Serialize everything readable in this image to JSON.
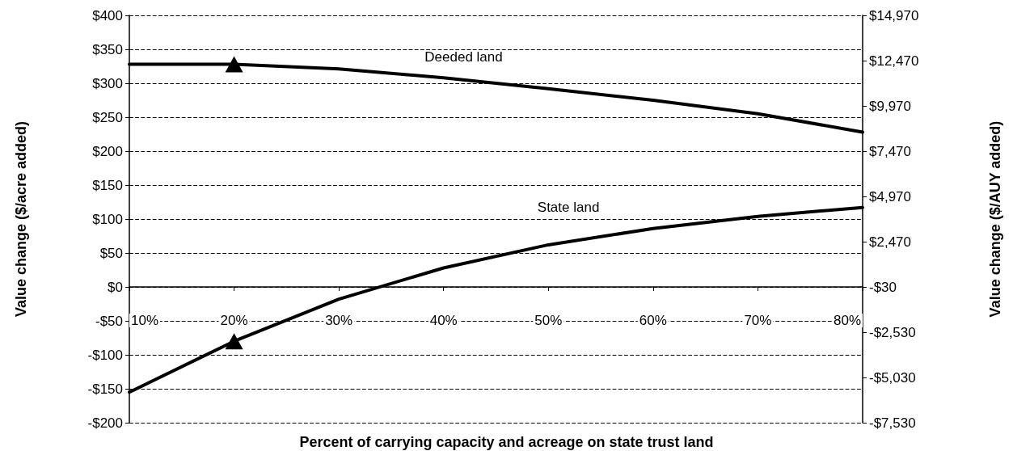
{
  "chart_data": {
    "type": "line",
    "xlabel": "Percent of carrying capacity and acreage on state trust land",
    "ylabel": "Value change ($/acre added)",
    "y2label": "Value change ($/AUY added)",
    "x": [
      10,
      20,
      30,
      40,
      50,
      60,
      70,
      80
    ],
    "series": [
      {
        "color": "#000000",
        "values": [
          328,
          328,
          321,
          308,
          292,
          275,
          255,
          228
        ]
      },
      {
        "color": "#000000",
        "values": [
          -155,
          -80,
          -18,
          28,
          62,
          86,
          104,
          117
        ]
      },
      {
        "type": "scatter",
        "color": "#000000",
        "marker": "triangle",
        "x": [
          20,
          20
        ],
        "values": [
          328,
          -80
        ]
      }
    ],
    "xlim": [
      10,
      80
    ],
    "xticks": [
      {
        "value": 10,
        "label": "10%"
      },
      {
        "value": 20,
        "label": "20%"
      },
      {
        "value": 30,
        "label": "30%"
      },
      {
        "value": 40,
        "label": "40%"
      },
      {
        "value": 50,
        "label": "50%"
      },
      {
        "value": 60,
        "label": "60%"
      },
      {
        "value": 70,
        "label": "70%"
      },
      {
        "value": 80,
        "label": "80%"
      }
    ],
    "ylim": [
      -200,
      400
    ],
    "yticks": [
      {
        "value": -200,
        "label": "-$200"
      },
      {
        "value": -150,
        "label": "-$150"
      },
      {
        "value": -100,
        "label": "-$100"
      },
      {
        "value": -50,
        "label": "-$50"
      },
      {
        "value": 0,
        "label": "$0"
      },
      {
        "value": 50,
        "label": "$50"
      },
      {
        "value": 100,
        "label": "$100"
      },
      {
        "value": 150,
        "label": "$150"
      },
      {
        "value": 200,
        "label": "$200"
      },
      {
        "value": 250,
        "label": "$250"
      },
      {
        "value": 300,
        "label": "$300"
      },
      {
        "value": 350,
        "label": "$350"
      },
      {
        "value": 400,
        "label": "$400"
      }
    ],
    "y2lim": [
      -7530,
      14970
    ],
    "y2ticks": [
      {
        "value": -7530,
        "label": "-$7,530"
      },
      {
        "value": -5030,
        "label": "-$5,030"
      },
      {
        "value": -2530,
        "label": "-$2,530"
      },
      {
        "value": -30,
        "label": "-$30"
      },
      {
        "value": 2470,
        "label": "$2,470"
      },
      {
        "value": 4970,
        "label": "$4,970"
      },
      {
        "value": 7470,
        "label": "$7,470"
      },
      {
        "value": 9970,
        "label": "$9,970"
      },
      {
        "value": 12470,
        "label": "$12,470"
      },
      {
        "value": 14970,
        "label": "$14,970"
      }
    ],
    "annotations": [
      "Deeded land",
      "State land"
    ],
    "grid": "y",
    "line_style": "solid"
  }
}
